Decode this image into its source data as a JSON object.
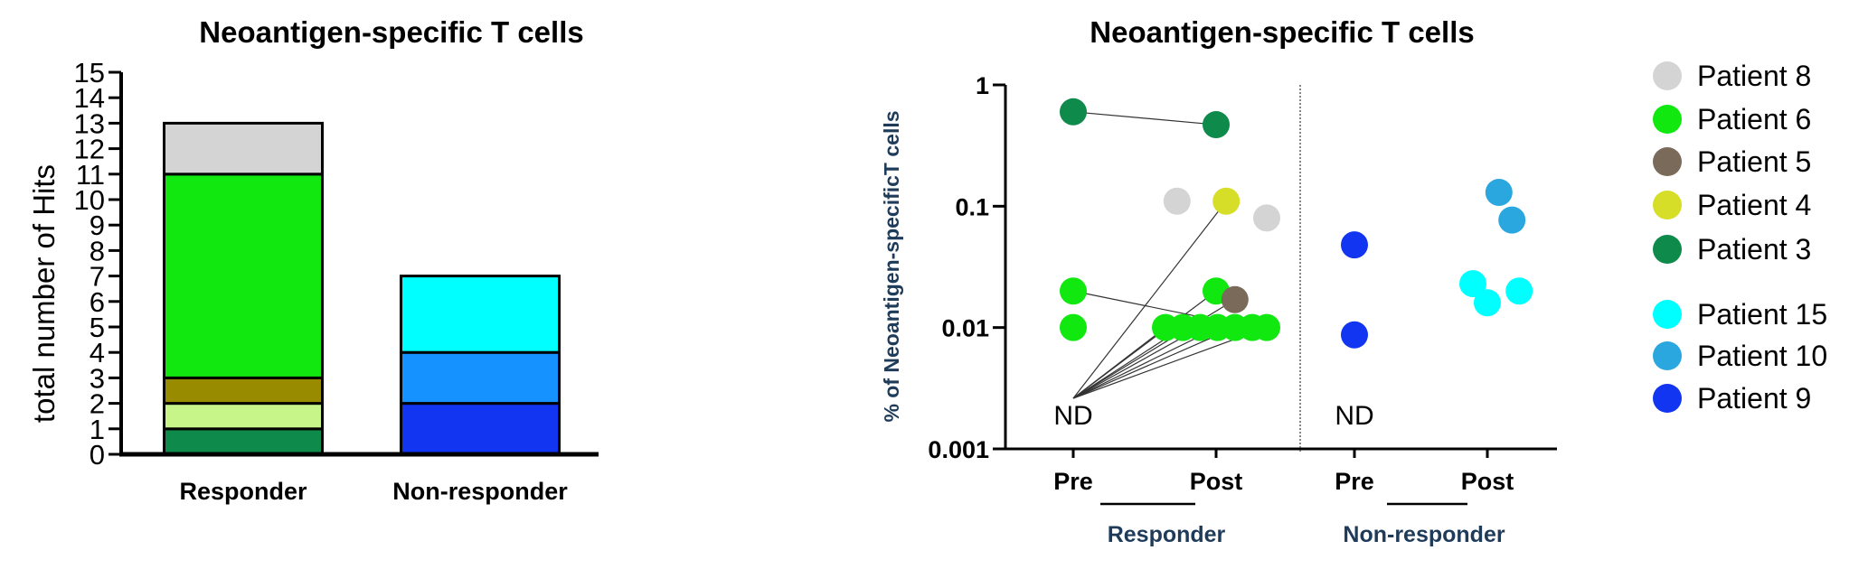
{
  "chart_data": [
    {
      "type": "bar",
      "stacked": true,
      "title": "Neoantigen-specific T cells",
      "ylabel": "total number of Hits",
      "xlabel": "",
      "ylim": [
        0,
        15
      ],
      "yticks": [
        0,
        1,
        2,
        3,
        4,
        5,
        6,
        7,
        8,
        9,
        10,
        11,
        12,
        13,
        14,
        15
      ],
      "grid": false,
      "categories": [
        "Responder",
        "Non-responder"
      ],
      "stacks": [
        {
          "category": "Responder",
          "segments": [
            {
              "value": 1,
              "color": "#0e8a4a"
            },
            {
              "value": 1,
              "color": "#c8f58a"
            },
            {
              "value": 1,
              "color": "#988b00"
            },
            {
              "value": 8,
              "color": "#10e810"
            },
            {
              "value": 2,
              "color": "#d4d4d4"
            }
          ]
        },
        {
          "category": "Non-responder",
          "segments": [
            {
              "value": 2,
              "color": "#1135f0"
            },
            {
              "value": 2,
              "color": "#1592ff"
            },
            {
              "value": 3,
              "color": "#00ffff"
            }
          ]
        }
      ]
    },
    {
      "type": "scatter",
      "title": "Neoantigen-specific T cells",
      "ylabel": "% of Neoantigen-specificT cells",
      "yscale": "log",
      "ylim": [
        0.001,
        1
      ],
      "yticks": [
        {
          "value": 0.001,
          "label": "0.001"
        },
        {
          "value": 0.01,
          "label": "0.01"
        },
        {
          "value": 0.1,
          "label": "0.1"
        },
        {
          "value": 1,
          "label": "1"
        }
      ],
      "grid": false,
      "x_categories": [
        "Pre",
        "Post",
        "Pre",
        "Post"
      ],
      "groups": [
        "Responder",
        "Non-responder"
      ],
      "nd_label": "ND",
      "legend_position": "right",
      "legend": [
        {
          "name": "Patient 8",
          "color": "#d4d4d4"
        },
        {
          "name": "Patient 6",
          "color": "#10e810"
        },
        {
          "name": "Patient 5",
          "color": "#7a6a5a"
        },
        {
          "name": "Patient 4",
          "color": "#d6de27"
        },
        {
          "name": "Patient 3",
          "color": "#0e8a4a"
        },
        {
          "name": "Patient 15",
          "color": "#00ffff"
        },
        {
          "name": "Patient 10",
          "color": "#2aa7df"
        },
        {
          "name": "Patient 9",
          "color": "#1135f0"
        }
      ],
      "points": [
        {
          "x": 0,
          "dx": 0.0,
          "y": 0.6,
          "color": "#0e8a4a"
        },
        {
          "x": 0,
          "dx": 0.0,
          "y": 0.02,
          "color": "#10e810"
        },
        {
          "x": 0,
          "dx": 0.0,
          "y": 0.01,
          "color": "#10e810"
        },
        {
          "x": 1,
          "dx": 0.0,
          "y": 0.47,
          "color": "#0e8a4a"
        },
        {
          "x": 1,
          "dx": -0.27,
          "y": 0.11,
          "color": "#d4d4d4"
        },
        {
          "x": 1,
          "dx": 0.07,
          "y": 0.11,
          "color": "#d6de27"
        },
        {
          "x": 1,
          "dx": 0.35,
          "y": 0.08,
          "color": "#d4d4d4"
        },
        {
          "x": 1,
          "dx": 0.0,
          "y": 0.02,
          "color": "#10e810"
        },
        {
          "x": 1,
          "dx": 0.13,
          "y": 0.017,
          "color": "#7a6a5a"
        },
        {
          "x": 1,
          "dx": -0.35,
          "y": 0.01,
          "color": "#10e810"
        },
        {
          "x": 1,
          "dx": -0.23,
          "y": 0.01,
          "color": "#10e810"
        },
        {
          "x": 1,
          "dx": -0.11,
          "y": 0.01,
          "color": "#10e810"
        },
        {
          "x": 1,
          "dx": 0.01,
          "y": 0.01,
          "color": "#10e810"
        },
        {
          "x": 1,
          "dx": 0.13,
          "y": 0.01,
          "color": "#10e810"
        },
        {
          "x": 1,
          "dx": 0.25,
          "y": 0.01,
          "color": "#10e810"
        },
        {
          "x": 1,
          "dx": 0.35,
          "y": 0.01,
          "color": "#10e810"
        },
        {
          "x": 2,
          "dx": 0.0,
          "y": 0.048,
          "color": "#1135f0"
        },
        {
          "x": 2,
          "dx": 0.0,
          "y": 0.0087,
          "color": "#1135f0"
        },
        {
          "x": 3,
          "dx": 0.08,
          "y": 0.13,
          "color": "#2aa7df"
        },
        {
          "x": 3,
          "dx": 0.17,
          "y": 0.077,
          "color": "#2aa7df"
        },
        {
          "x": 3,
          "dx": -0.1,
          "y": 0.023,
          "color": "#00ffff"
        },
        {
          "x": 3,
          "dx": 0.0,
          "y": 0.016,
          "color": "#00ffff"
        },
        {
          "x": 3,
          "dx": 0.22,
          "y": 0.02,
          "color": "#00ffff"
        }
      ],
      "links": [
        {
          "from": {
            "x": 0,
            "dx": 0.0,
            "y": 0.6
          },
          "to": {
            "x": 1,
            "dx": 0.0,
            "y": 0.47
          }
        },
        {
          "from": {
            "x": 0,
            "dx": 0.0,
            "y": 0.02
          },
          "to": {
            "x": 1,
            "dx": 0.25,
            "y": 0.01
          }
        },
        {
          "from": {
            "x": 0,
            "dx": 0.0,
            "y": "ND"
          },
          "to": {
            "x": 1,
            "dx": 0.07,
            "y": 0.11
          }
        },
        {
          "from": {
            "x": 0,
            "dx": 0.0,
            "y": "ND"
          },
          "to": {
            "x": 1,
            "dx": 0.0,
            "y": 0.02
          }
        },
        {
          "from": {
            "x": 0,
            "dx": 0.0,
            "y": "ND"
          },
          "to": {
            "x": 1,
            "dx": 0.13,
            "y": 0.017
          }
        },
        {
          "from": {
            "x": 0,
            "dx": 0.0,
            "y": "ND"
          },
          "to": {
            "x": 1,
            "dx": -0.35,
            "y": 0.01
          }
        },
        {
          "from": {
            "x": 0,
            "dx": 0.0,
            "y": "ND"
          },
          "to": {
            "x": 1,
            "dx": -0.23,
            "y": 0.01
          }
        },
        {
          "from": {
            "x": 0,
            "dx": 0.0,
            "y": "ND"
          },
          "to": {
            "x": 1,
            "dx": -0.11,
            "y": 0.01
          }
        },
        {
          "from": {
            "x": 0,
            "dx": 0.0,
            "y": "ND"
          },
          "to": {
            "x": 1,
            "dx": 0.01,
            "y": 0.01
          }
        },
        {
          "from": {
            "x": 0,
            "dx": 0.0,
            "y": "ND"
          },
          "to": {
            "x": 1,
            "dx": 0.13,
            "y": 0.01
          }
        },
        {
          "from": {
            "x": 0,
            "dx": 0.0,
            "y": "ND"
          },
          "to": {
            "x": 1,
            "dx": 0.35,
            "y": 0.01
          }
        }
      ]
    }
  ]
}
